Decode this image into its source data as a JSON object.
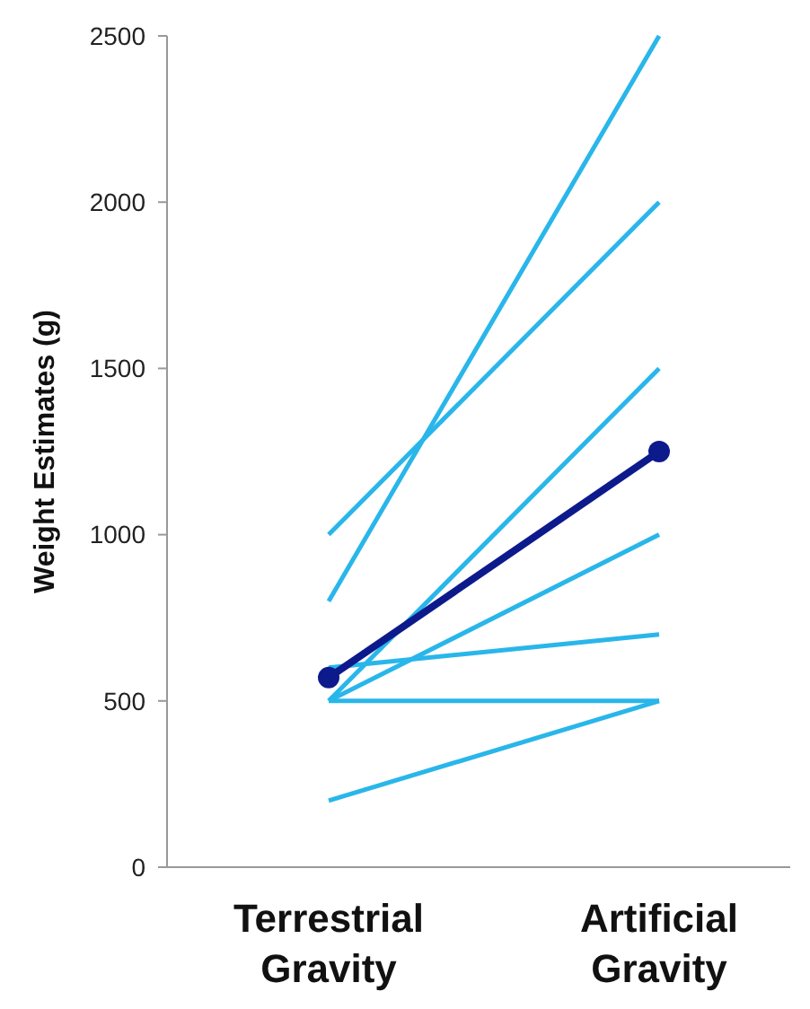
{
  "chart_data": {
    "type": "line",
    "ylabel": "Weight Estimates (g)",
    "categories": [
      "Terrestrial Gravity",
      "Artificial Gravity"
    ],
    "ylim": [
      0,
      2500
    ],
    "yticks": [
      0,
      500,
      1000,
      1500,
      2000,
      2500
    ],
    "series": [
      {
        "color": "#29b6ea",
        "values": [
          1000,
          2000
        ],
        "marker": "none"
      },
      {
        "color": "#29b6ea",
        "values": [
          800,
          2500
        ],
        "marker": "none"
      },
      {
        "color": "#29b6ea",
        "values": [
          500,
          1500
        ],
        "marker": "none"
      },
      {
        "color": "#29b6ea",
        "values": [
          500,
          1000
        ],
        "marker": "none"
      },
      {
        "color": "#29b6ea",
        "values": [
          600,
          700
        ],
        "marker": "none"
      },
      {
        "color": "#29b6ea",
        "values": [
          500,
          500
        ],
        "marker": "none"
      },
      {
        "color": "#29b6ea",
        "values": [
          200,
          500
        ],
        "marker": "none"
      },
      {
        "color": "#0d1a8c",
        "values": [
          570,
          1250
        ],
        "marker": "circle"
      }
    ]
  }
}
